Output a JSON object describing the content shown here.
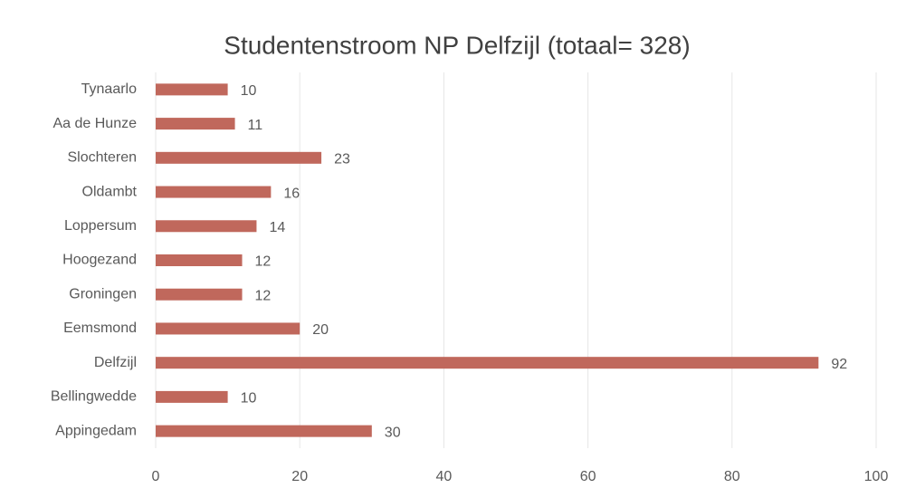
{
  "chart_data": {
    "type": "bar",
    "orientation": "horizontal",
    "title": "Studentenstroom NP Delfzijl (totaal= 328)",
    "categories": [
      "Tynaarlo",
      "Aa de Hunze",
      "Slochteren",
      "Oldambt",
      "Loppersum",
      "Hoogezand",
      "Groningen",
      "Eemsmond",
      "Delfzijl",
      "Bellingwedde",
      "Appingedam"
    ],
    "values": [
      10,
      11,
      23,
      16,
      14,
      12,
      12,
      20,
      92,
      10,
      30
    ],
    "color": "#c0685c",
    "xlim": [
      0,
      100
    ],
    "xticks": [
      0,
      20,
      40,
      60,
      80,
      100
    ],
    "grid": true
  }
}
